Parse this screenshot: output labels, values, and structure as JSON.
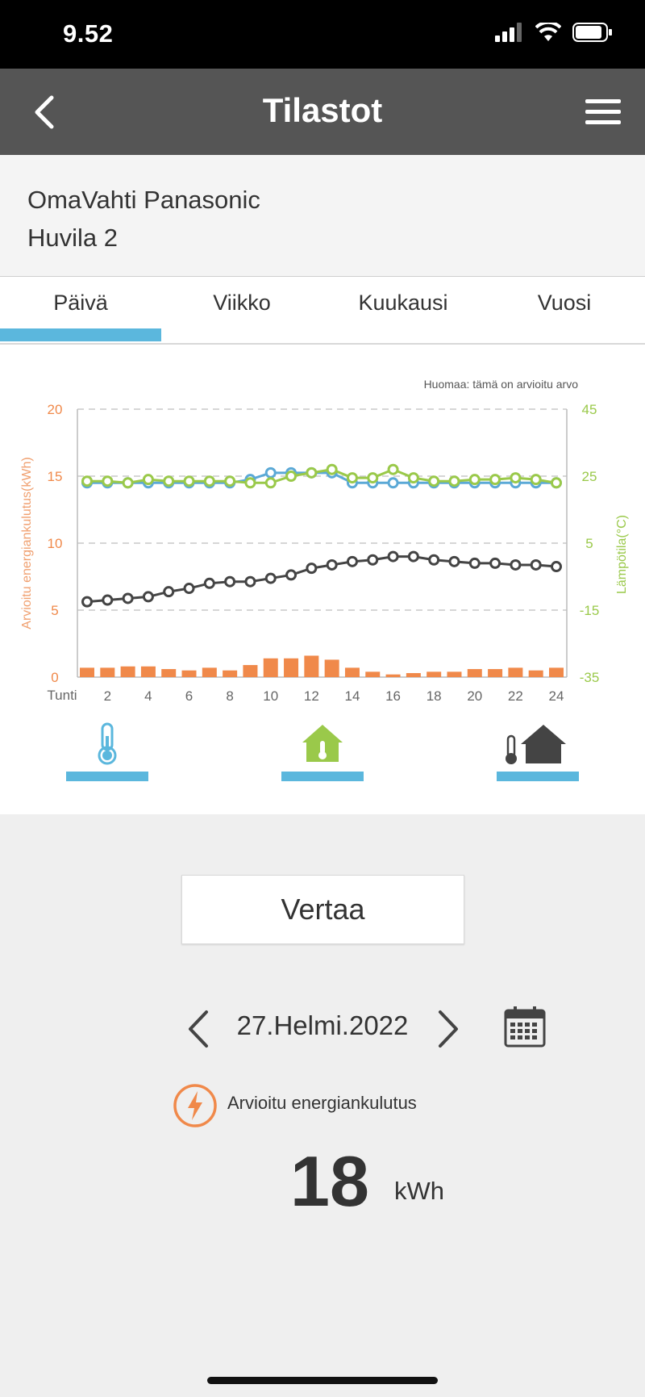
{
  "status_bar": {
    "time": "9.52"
  },
  "header": {
    "title": "Tilastot"
  },
  "device": {
    "line1": "OmaVahti Panasonic",
    "line2": "Huvila 2"
  },
  "tabs": [
    {
      "label": "Päivä",
      "selected": true
    },
    {
      "label": "Viikko",
      "selected": false
    },
    {
      "label": "Kuukausi",
      "selected": false
    },
    {
      "label": "Vuosi",
      "selected": false
    }
  ],
  "chart_note": "Huomaa: tämä on arvioitu arvo",
  "chart_data": {
    "type": "bar+line",
    "xlabel": "Tunti",
    "ylabel": "Arvioitu energiankulutus(kWh)",
    "y2label": "Lämpötila(°C)",
    "x": [
      1,
      2,
      3,
      4,
      5,
      6,
      7,
      8,
      9,
      10,
      11,
      12,
      13,
      14,
      15,
      16,
      17,
      18,
      19,
      20,
      21,
      22,
      23,
      24
    ],
    "x_ticks": [
      2,
      4,
      6,
      8,
      10,
      12,
      14,
      16,
      18,
      20,
      22,
      24
    ],
    "ylim": [
      0,
      20
    ],
    "y_ticks": [
      0,
      5,
      10,
      15,
      20
    ],
    "y2lim": [
      -35,
      45
    ],
    "y2_ticks": [
      -35,
      -15,
      5,
      25,
      45
    ],
    "grid": true,
    "series": [
      {
        "axis": "left",
        "kind": "bar",
        "color": "#f0894a",
        "values": [
          0.7,
          0.7,
          0.8,
          0.8,
          0.6,
          0.5,
          0.7,
          0.5,
          0.9,
          1.4,
          1.4,
          1.6,
          1.3,
          0.7,
          0.4,
          0.2,
          0.3,
          0.4,
          0.4,
          0.6,
          0.6,
          0.7,
          0.5,
          0.7
        ]
      },
      {
        "axis": "right",
        "kind": "line",
        "color": "#5ba9d6",
        "values": [
          23,
          23,
          23,
          23,
          23,
          23,
          23,
          23,
          24,
          26,
          26,
          26,
          26,
          23,
          23,
          23,
          23,
          23,
          23,
          23,
          23,
          23,
          23,
          23
        ]
      },
      {
        "axis": "right",
        "kind": "line",
        "color": "#9ac94a",
        "values": [
          23.5,
          23.5,
          23,
          24,
          23.5,
          23.5,
          23.5,
          23.5,
          23,
          23,
          25,
          26,
          27,
          24.5,
          24.5,
          27,
          24.5,
          23.5,
          23.5,
          24,
          24,
          24.5,
          24,
          23
        ]
      },
      {
        "axis": "right",
        "kind": "line",
        "color": "#444444",
        "values": [
          -12.5,
          -12,
          -11.5,
          -11,
          -9.5,
          -8.5,
          -7,
          -6.5,
          -6.5,
          -5.5,
          -4.5,
          -2.5,
          -1.5,
          -0.5,
          0,
          1,
          1,
          0,
          -0.5,
          -1,
          -1,
          -1.5,
          -1.5,
          -2
        ]
      }
    ]
  },
  "legend": {
    "outdoor_icon": "thermometer-icon",
    "indoor_icon": "house-thermometer-icon",
    "combined_icon": "thermometer-house-icon"
  },
  "compare": {
    "label": "Vertaa"
  },
  "date": {
    "label": "27.Helmi.2022"
  },
  "energy": {
    "label": "Arvioitu energiankulutus",
    "value": "18",
    "unit": "kWh"
  },
  "colors": {
    "accent": "#5bb7dd",
    "energy": "#f0894a",
    "indoor": "#9ac94a",
    "outdoor": "#5ba9d6",
    "header": "#555555"
  }
}
